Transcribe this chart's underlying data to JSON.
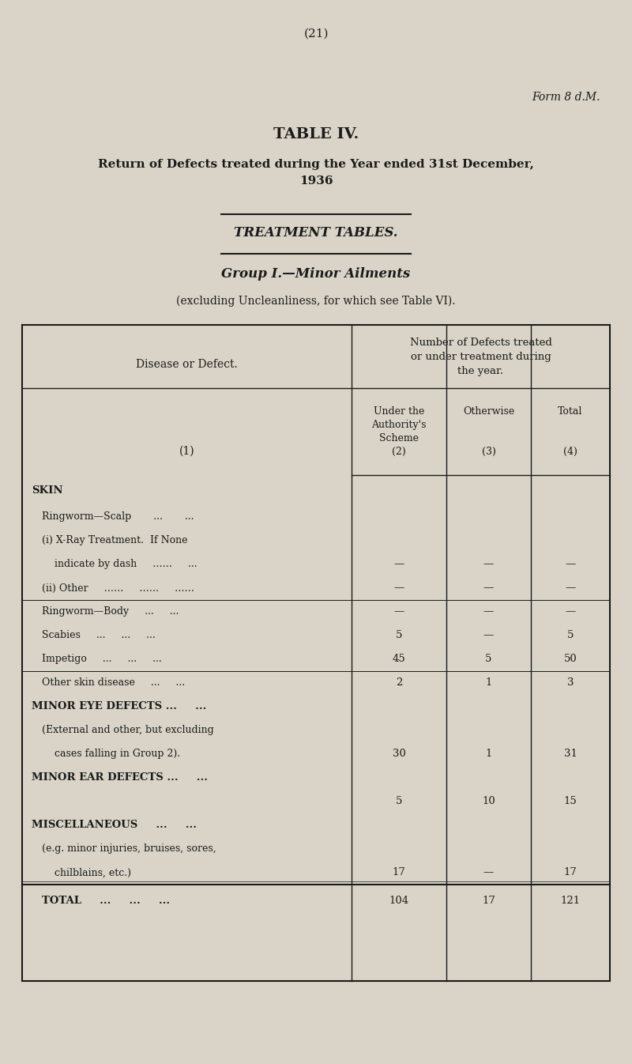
{
  "page_number": "(21)",
  "form_label": "Form 8 d.M.",
  "title": "TABLE IV.",
  "subtitle": "Return of Defects treated during the Year ended 31st December,\n1936",
  "section_divider": true,
  "treatment_tables": "TREATMENT TABLES.",
  "group_heading": "Group I.—Minor Ailments",
  "group_subheading": "(excluding Uncleanliness, for which see Table VI).",
  "col_header_main": "Number of Defects treated\nor under treatment during\nthe year.",
  "col_header_disease": "Disease or Defect.",
  "col_header_num1": "(1)",
  "col_header_2": "Under the\nAuthority's\nScheme\n(2)",
  "col_header_3": "Otherwise\n\n\n(3)",
  "col_header_4": "Total\n\n\n(4)",
  "bg_color": "#d9d4c7",
  "table_bg": "#d9d4c7",
  "text_color": "#1a1a1a",
  "rows": [
    {
      "label": "SKIN",
      "indent": 0,
      "bold": true,
      "col2": "",
      "col3": "",
      "col4": "",
      "line_above": false,
      "line_below": false
    },
    {
      "label": "Ringworm—Scalp       ...       ...",
      "indent": 1,
      "bold": false,
      "col2": "",
      "col3": "",
      "col4": "",
      "line_above": false,
      "line_below": false
    },
    {
      "label": "(i) X-Ray Treatment.  If None",
      "indent": 1,
      "bold": false,
      "col2": "",
      "col3": "",
      "col4": "",
      "line_above": false,
      "line_below": false
    },
    {
      "label": "    indicate by dash     ……     ...",
      "indent": 1,
      "bold": false,
      "col2": "—",
      "col3": "—",
      "col4": "—",
      "line_above": false,
      "line_below": false
    },
    {
      "label": "(ii) Other     ……     ……     ……",
      "indent": 1,
      "bold": false,
      "col2": "—",
      "col3": "—",
      "col4": "—",
      "line_above": false,
      "line_below": false
    },
    {
      "label": "Ringworm—Body     ...     ...",
      "indent": 1,
      "bold": false,
      "col2": "—",
      "col3": "—",
      "col4": "—",
      "line_above": true,
      "line_below": false
    },
    {
      "label": "Scabies     ...     ...     ...",
      "indent": 1,
      "bold": false,
      "col2": "5",
      "col3": "—",
      "col4": "5",
      "line_above": false,
      "line_below": false
    },
    {
      "label": "Impetigo     ...     ...     ...",
      "indent": 1,
      "bold": false,
      "col2": "45",
      "col3": "5",
      "col4": "50",
      "line_above": false,
      "line_below": false
    },
    {
      "label": "Other skin disease     ...     ...",
      "indent": 1,
      "bold": false,
      "col2": "2",
      "col3": "1",
      "col4": "3",
      "line_above": true,
      "line_below": false
    },
    {
      "label": "MINOR EYE DEFECTS ...     ...",
      "indent": 0,
      "bold": true,
      "col2": "",
      "col3": "",
      "col4": "",
      "line_above": false,
      "line_below": false
    },
    {
      "label": "(External and other, but excluding",
      "indent": 1,
      "bold": false,
      "col2": "",
      "col3": "",
      "col4": "",
      "line_above": false,
      "line_below": false
    },
    {
      "label": "    cases falling in Group 2).",
      "indent": 1,
      "bold": false,
      "col2": "30",
      "col3": "1",
      "col4": "31",
      "line_above": false,
      "line_below": false
    },
    {
      "label": "MINOR EAR DEFECTS ...     ...",
      "indent": 0,
      "bold": true,
      "col2": "",
      "col3": "",
      "col4": "",
      "line_above": false,
      "line_below": false
    },
    {
      "label": "",
      "indent": 0,
      "bold": false,
      "col2": "5",
      "col3": "10",
      "col4": "15",
      "line_above": false,
      "line_below": false
    },
    {
      "label": "MISCELLANEOUS     ...     ...",
      "indent": 0,
      "bold": true,
      "col2": "",
      "col3": "",
      "col4": "",
      "line_above": false,
      "line_below": false
    },
    {
      "label": "(e.g. minor injuries, bruises, sores,",
      "indent": 1,
      "bold": false,
      "col2": "",
      "col3": "",
      "col4": "",
      "line_above": false,
      "line_below": false
    },
    {
      "label": "    chilblains, etc.)",
      "indent": 1,
      "bold": false,
      "col2": "17",
      "col3": "—",
      "col4": "17",
      "line_above": false,
      "line_below": false
    },
    {
      "label": "TOTAL     ...     ...     ...",
      "indent": 1,
      "bold": true,
      "col2": "104",
      "col3": "17",
      "col4": "121",
      "line_above": true,
      "line_below": false
    }
  ]
}
